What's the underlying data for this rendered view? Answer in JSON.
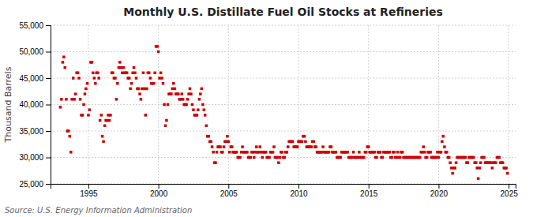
{
  "chart_data": {
    "type": "scatter",
    "title": "Monthly U.S. Distillate Fuel Oil Stocks at Refineries",
    "ylabel": "Thousand Barrels",
    "annotations": [
      "Source: U.S. Energy Information Administration"
    ],
    "color": "#cc0000",
    "marker": "square",
    "grid": true,
    "xlim": [
      1992.3,
      2025.5
    ],
    "xticks": [
      1995,
      2000,
      2005,
      2010,
      2015,
      2020,
      2025
    ],
    "ylim": [
      25000,
      55000
    ],
    "yticks": [
      {
        "value": 25000,
        "label": "25,000"
      },
      {
        "value": 30000,
        "label": "30,000"
      },
      {
        "value": 35000,
        "label": "35,000"
      },
      {
        "value": 40000,
        "label": "40,000"
      },
      {
        "value": 45000,
        "label": "45,000"
      },
      {
        "value": 50000,
        "label": "50,000"
      },
      {
        "value": 55000,
        "label": "55,000"
      }
    ],
    "x": [
      1993.0,
      1993.08,
      1993.17,
      1993.25,
      1993.33,
      1993.42,
      1993.5,
      1993.58,
      1993.67,
      1993.75,
      1993.83,
      1993.92,
      1994.0,
      1994.08,
      1994.17,
      1994.25,
      1994.33,
      1994.42,
      1994.5,
      1994.58,
      1994.67,
      1994.75,
      1994.83,
      1994.92,
      1995.0,
      1995.08,
      1995.17,
      1995.25,
      1995.33,
      1995.42,
      1995.5,
      1995.58,
      1995.67,
      1995.75,
      1995.83,
      1995.92,
      1996.0,
      1996.08,
      1996.17,
      1996.25,
      1996.33,
      1996.42,
      1996.5,
      1996.58,
      1996.67,
      1996.75,
      1996.83,
      1996.92,
      1997.0,
      1997.08,
      1997.17,
      1997.25,
      1997.33,
      1997.42,
      1997.5,
      1997.58,
      1997.67,
      1997.75,
      1997.83,
      1997.92,
      1998.0,
      1998.08,
      1998.17,
      1998.25,
      1998.33,
      1998.42,
      1998.5,
      1998.58,
      1998.67,
      1998.75,
      1998.83,
      1998.92,
      1999.0,
      1999.08,
      1999.17,
      1999.25,
      1999.33,
      1999.42,
      1999.5,
      1999.58,
      1999.67,
      1999.75,
      1999.83,
      1999.92,
      2000.0,
      2000.08,
      2000.17,
      2000.25,
      2000.33,
      2000.42,
      2000.5,
      2000.58,
      2000.67,
      2000.75,
      2000.83,
      2000.92,
      2001.0,
      2001.08,
      2001.17,
      2001.25,
      2001.33,
      2001.42,
      2001.5,
      2001.58,
      2001.67,
      2001.75,
      2001.83,
      2001.92,
      2002.0,
      2002.08,
      2002.17,
      2002.25,
      2002.33,
      2002.42,
      2002.5,
      2002.58,
      2002.67,
      2002.75,
      2002.83,
      2002.92,
      2003.0,
      2003.08,
      2003.17,
      2003.25,
      2003.33,
      2003.42,
      2003.5,
      2003.58,
      2003.67,
      2003.75,
      2003.83,
      2003.92,
      2004.0,
      2004.08,
      2004.17,
      2004.25,
      2004.33,
      2004.42,
      2004.5,
      2004.58,
      2004.67,
      2004.75,
      2004.83,
      2004.92,
      2005.0,
      2005.08,
      2005.17,
      2005.25,
      2005.33,
      2005.42,
      2005.5,
      2005.58,
      2005.67,
      2005.75,
      2005.83,
      2005.92,
      2006.0,
      2006.08,
      2006.17,
      2006.25,
      2006.33,
      2006.42,
      2006.5,
      2006.58,
      2006.67,
      2006.75,
      2006.83,
      2006.92,
      2007.0,
      2007.08,
      2007.17,
      2007.25,
      2007.33,
      2007.42,
      2007.5,
      2007.58,
      2007.67,
      2007.75,
      2007.83,
      2007.92,
      2008.0,
      2008.08,
      2008.17,
      2008.25,
      2008.33,
      2008.42,
      2008.5,
      2008.58,
      2008.67,
      2008.75,
      2008.83,
      2008.92,
      2009.0,
      2009.08,
      2009.17,
      2009.25,
      2009.33,
      2009.42,
      2009.5,
      2009.58,
      2009.67,
      2009.75,
      2009.83,
      2009.92,
      2010.0,
      2010.08,
      2010.17,
      2010.25,
      2010.33,
      2010.42,
      2010.5,
      2010.58,
      2010.67,
      2010.75,
      2010.83,
      2010.92,
      2011.0,
      2011.08,
      2011.17,
      2011.25,
      2011.33,
      2011.42,
      2011.5,
      2011.58,
      2011.67,
      2011.75,
      2011.83,
      2011.92,
      2012.0,
      2012.08,
      2012.17,
      2012.25,
      2012.33,
      2012.42,
      2012.5,
      2012.58,
      2012.67,
      2012.75,
      2012.83,
      2012.92,
      2013.0,
      2013.08,
      2013.17,
      2013.25,
      2013.33,
      2013.42,
      2013.5,
      2013.58,
      2013.67,
      2013.75,
      2013.83,
      2013.92,
      2014.0,
      2014.08,
      2014.17,
      2014.25,
      2014.33,
      2014.42,
      2014.5,
      2014.58,
      2014.67,
      2014.75,
      2014.83,
      2014.92,
      2015.0,
      2015.08,
      2015.17,
      2015.25,
      2015.33,
      2015.42,
      2015.5,
      2015.58,
      2015.67,
      2015.75,
      2015.83,
      2015.92,
      2016.0,
      2016.08,
      2016.17,
      2016.25,
      2016.33,
      2016.42,
      2016.5,
      2016.58,
      2016.67,
      2016.75,
      2016.83,
      2016.92,
      2017.0,
      2017.08,
      2017.17,
      2017.25,
      2017.33,
      2017.42,
      2017.5,
      2017.58,
      2017.67,
      2017.75,
      2017.83,
      2017.92,
      2018.0,
      2018.08,
      2018.17,
      2018.25,
      2018.33,
      2018.42,
      2018.5,
      2018.58,
      2018.67,
      2018.75,
      2018.83,
      2018.92,
      2019.0,
      2019.08,
      2019.17,
      2019.25,
      2019.33,
      2019.42,
      2019.5,
      2019.58,
      2019.67,
      2019.75,
      2019.83,
      2019.92,
      2020.0,
      2020.08,
      2020.17,
      2020.25,
      2020.33,
      2020.42,
      2020.5,
      2020.58,
      2020.67,
      2020.75,
      2020.83,
      2020.92,
      2021.0,
      2021.08,
      2021.17,
      2021.25,
      2021.33,
      2021.42,
      2021.5,
      2021.58,
      2021.67,
      2021.75,
      2021.83,
      2021.92,
      2022.0,
      2022.08,
      2022.17,
      2022.25,
      2022.33,
      2022.42,
      2022.5,
      2022.58,
      2022.67,
      2022.75,
      2022.83,
      2022.92,
      2023.0,
      2023.08,
      2023.17,
      2023.25,
      2023.33,
      2023.42,
      2023.5,
      2023.58,
      2023.67,
      2023.75,
      2023.83,
      2023.92,
      2024.0,
      2024.08,
      2024.17,
      2024.25,
      2024.33,
      2024.42,
      2024.5,
      2024.58,
      2024.67,
      2024.75,
      2024.83,
      2024.92
    ],
    "values": [
      39500,
      41000,
      48000,
      49000,
      47000,
      41000,
      35000,
      35000,
      34000,
      31000,
      41000,
      45000,
      41000,
      42000,
      46000,
      46000,
      45000,
      41000,
      38000,
      38000,
      40000,
      42000,
      43000,
      44000,
      38000,
      39000,
      48000,
      48000,
      46000,
      45000,
      44000,
      46000,
      46000,
      45000,
      37000,
      38000,
      34000,
      33000,
      36000,
      37000,
      37000,
      38000,
      37000,
      38000,
      46000,
      46000,
      45000,
      45000,
      41000,
      44000,
      47000,
      48000,
      47000,
      46000,
      47000,
      46000,
      46000,
      46000,
      45000,
      45000,
      43000,
      44000,
      46000,
      47000,
      46000,
      45000,
      43000,
      43000,
      42000,
      41000,
      43000,
      46000,
      43000,
      38000,
      43000,
      46000,
      46000,
      45000,
      44000,
      44000,
      44000,
      46000,
      51000,
      51000,
      50000,
      45000,
      46000,
      45000,
      44000,
      40000,
      36000,
      37000,
      40000,
      42000,
      42000,
      42000,
      43000,
      44000,
      43000,
      42000,
      42000,
      42000,
      41000,
      41000,
      42000,
      41000,
      40000,
      40000,
      40000,
      41000,
      42000,
      43000,
      42000,
      40000,
      39000,
      38000,
      38000,
      38000,
      39000,
      41000,
      42000,
      43000,
      40000,
      39000,
      38000,
      36000,
      34000,
      34000,
      33000,
      33000,
      32000,
      31000,
      29000,
      29000,
      31000,
      32000,
      32000,
      32000,
      31000,
      31000,
      32000,
      33000,
      33000,
      34000,
      33000,
      31000,
      32000,
      32000,
      31000,
      31000,
      31000,
      31000,
      30000,
      30000,
      30000,
      31000,
      32000,
      31000,
      31000,
      31000,
      31000,
      30000,
      30000,
      30000,
      31000,
      31000,
      30000,
      31000,
      32000,
      31000,
      31000,
      32000,
      31000,
      30000,
      31000,
      31000,
      31000,
      30000,
      30000,
      30000,
      31000,
      31000,
      31000,
      32000,
      30000,
      30000,
      30000,
      29000,
      30000,
      31000,
      31000,
      30000,
      30000,
      31000,
      31000,
      32000,
      33000,
      33000,
      33000,
      33000,
      32000,
      32000,
      32000,
      32000,
      33000,
      33000,
      33000,
      33000,
      34000,
      34000,
      33000,
      32000,
      32000,
      32000,
      32000,
      32000,
      33000,
      33000,
      32000,
      32000,
      31000,
      31000,
      31000,
      31000,
      31000,
      32000,
      31000,
      31000,
      31000,
      31000,
      31000,
      32000,
      32000,
      31000,
      31000,
      31000,
      31000,
      30000,
      30000,
      30000,
      30000,
      31000,
      31000,
      31000,
      31000,
      31000,
      31000,
      30000,
      30000,
      30000,
      30000,
      31000,
      30000,
      30000,
      30000,
      30000,
      31000,
      30000,
      30000,
      30000,
      30000,
      31000,
      31000,
      32000,
      32000,
      31000,
      31000,
      31000,
      31000,
      31000,
      30000,
      30000,
      31000,
      31000,
      31000,
      30000,
      30000,
      31000,
      31000,
      31000,
      31000,
      31000,
      31000,
      30000,
      30000,
      31000,
      31000,
      30000,
      30000,
      31000,
      30000,
      30000,
      31000,
      31000,
      30000,
      30000,
      30000,
      30000,
      30000,
      30000,
      30000,
      30000,
      30000,
      30000,
      30000,
      30000,
      30000,
      30000,
      30000,
      31000,
      31000,
      32000,
      31000,
      30000,
      30000,
      31000,
      31000,
      31000,
      30000,
      30000,
      30000,
      30000,
      30000,
      31000,
      30000,
      31000,
      31000,
      33000,
      34000,
      32000,
      31000,
      31000,
      30000,
      30000,
      29000,
      28000,
      27000,
      28000,
      28000,
      29000,
      30000,
      30000,
      30000,
      30000,
      30000,
      30000,
      30000,
      30000,
      29000,
      29000,
      30000,
      30000,
      30000,
      30000,
      30000,
      29000,
      29000,
      28000,
      26000,
      28000,
      29000,
      30000,
      30000,
      30000,
      29000,
      29000,
      29000,
      29000,
      29000,
      29000,
      28000,
      29000,
      29000,
      29000,
      30000,
      30000,
      30000,
      29000,
      29000,
      29000,
      28000,
      28000,
      28000,
      27000
    ]
  }
}
